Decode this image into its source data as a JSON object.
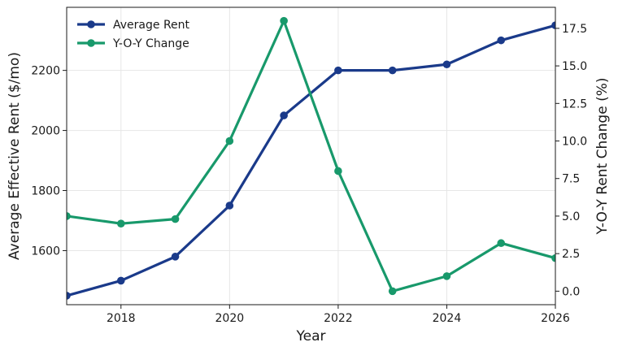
{
  "chart_data": {
    "type": "line",
    "xlabel": "Year",
    "ylabel": "Average Effective Rent ($/mo)",
    "y2label": "Y-O-Y Rent Change (%)",
    "xlim": [
      2017,
      2026
    ],
    "ylim": [
      1420,
      2410
    ],
    "y2lim": [
      -0.9,
      18.9
    ],
    "xticks": [
      2018,
      2020,
      2022,
      2024,
      2026
    ],
    "yticks": [
      1600,
      1800,
      2000,
      2200
    ],
    "y2ticks": [
      0.0,
      2.5,
      5.0,
      7.5,
      10.0,
      12.5,
      15.0,
      17.5
    ],
    "grid": true,
    "legend_position": "top-left",
    "x": [
      2017,
      2018,
      2019,
      2020,
      2021,
      2022,
      2023,
      2024,
      2025,
      2026
    ],
    "series": [
      {
        "name": "Average Rent",
        "axis": "left",
        "color": "#1a3a8a",
        "values": [
          1450,
          1500,
          1580,
          1750,
          2050,
          2200,
          2200,
          2220,
          2300,
          2350
        ]
      },
      {
        "name": "Y-O-Y Change",
        "axis": "right",
        "color": "#18996b",
        "values": [
          5.0,
          4.5,
          4.8,
          10.0,
          18.0,
          8.0,
          0.0,
          1.0,
          3.2,
          2.2
        ]
      }
    ]
  }
}
